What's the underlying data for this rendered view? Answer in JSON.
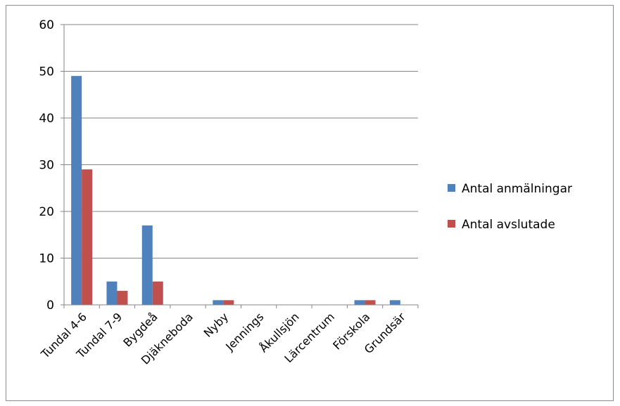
{
  "chart_data": {
    "type": "bar",
    "categories": [
      "Tundal 4-6",
      "Tundal 7-9",
      "Bygdeå",
      "Djäkneboda",
      "Nyby",
      "Jennings",
      "Åkullsjön",
      "Lärcentrum",
      "Förskola",
      "Grundsär"
    ],
    "series": [
      {
        "name": "Antal anmälningar",
        "values": [
          49,
          5,
          17,
          0,
          1,
          0,
          0,
          0,
          1,
          1
        ],
        "color": "#4F81BD"
      },
      {
        "name": "Antal avslutade",
        "values": [
          29,
          3,
          5,
          0,
          1,
          0,
          0,
          0,
          1,
          0
        ],
        "color": "#C0504D"
      }
    ],
    "yticks": [
      0,
      10,
      20,
      30,
      40,
      50,
      60
    ],
    "ylim": [
      0,
      60
    ],
    "grid": true,
    "legend_position": "right"
  }
}
